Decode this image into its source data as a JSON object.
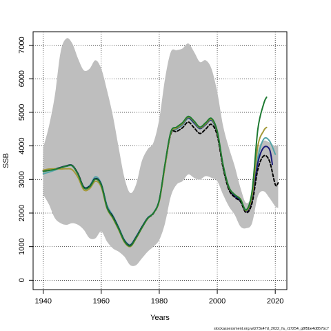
{
  "chart_data": {
    "type": "line",
    "title": "",
    "xlabel": "Years",
    "ylabel": "SSB",
    "footnote": "stockassessment.org,wt273s47d_2022_fa_r17254_g8f5be4d857bc7",
    "xlim": [
      1936.5,
      2024
    ],
    "ylim": [
      -280,
      7400
    ],
    "grid": true,
    "x_ticks": [
      1940,
      1960,
      1980,
      2000,
      2020
    ],
    "y_ticks": [
      0,
      1000,
      2000,
      3000,
      4000,
      5000,
      6000,
      7000
    ],
    "confidence_band": {
      "color": "#bebebe",
      "x": [
        1940,
        1942,
        1944,
        1946,
        1948,
        1950,
        1952,
        1954,
        1956,
        1958,
        1960,
        1962,
        1964,
        1966,
        1968,
        1970,
        1972,
        1974,
        1976,
        1978,
        1980,
        1982,
        1984,
        1986,
        1988,
        1990,
        1992,
        1994,
        1996,
        1998,
        2000,
        2002,
        2004,
        2006,
        2008,
        2010,
        2012,
        2014,
        2016,
        2018,
        2020,
        2021
      ],
      "upper": [
        3950,
        4600,
        5500,
        6800,
        7200,
        7050,
        6600,
        6250,
        6300,
        6550,
        6300,
        5650,
        4900,
        3950,
        3050,
        2600,
        2850,
        3550,
        3900,
        4100,
        4800,
        6000,
        6800,
        6850,
        6900,
        7050,
        6800,
        6500,
        6550,
        6300,
        5600,
        4600,
        3950,
        3400,
        2750,
        2300,
        2600,
        3850,
        4150,
        4100,
        4000,
        4050
      ],
      "lower": [
        2550,
        2250,
        1850,
        1700,
        1650,
        1700,
        1650,
        1500,
        1250,
        1250,
        1450,
        1150,
        950,
        850,
        700,
        450,
        450,
        650,
        850,
        1000,
        1200,
        1700,
        2500,
        2850,
        2950,
        3150,
        3050,
        3000,
        3100,
        3050,
        2950,
        2550,
        2200,
        1950,
        1600,
        1550,
        1700,
        2500,
        2650,
        2450,
        2200,
        2150
      ]
    },
    "series": [
      {
        "color": "#53a5a8",
        "x": [
          1940,
          1942,
          1944,
          1946,
          1948,
          1950,
          1952,
          1954,
          1956,
          1958,
          1960,
          1962,
          1964,
          1966,
          1968,
          1970,
          1972,
          1974,
          1976,
          1978,
          1980,
          1982,
          1984,
          1986,
          1988,
          1990,
          1992,
          1994,
          1996,
          1998,
          2000,
          2002,
          2004,
          2006,
          2008,
          2010,
          2012,
          2014,
          2016,
          2018,
          2020
        ],
        "values": [
          3170,
          3220,
          3280,
          3340,
          3390,
          3400,
          3150,
          2780,
          2820,
          3080,
          2880,
          2230,
          1930,
          1580,
          1200,
          1060,
          1300,
          1590,
          1860,
          2010,
          2400,
          3450,
          4380,
          4500,
          4620,
          4820,
          4670,
          4510,
          4630,
          4760,
          4380,
          3400,
          2750,
          2520,
          2390,
          2100,
          2470,
          3650,
          4200,
          4150,
          3750
        ]
      },
      {
        "color": "#1a1a78",
        "x": [
          1940,
          1942,
          1944,
          1946,
          1948,
          1950,
          1952,
          1954,
          1956,
          1958,
          1960,
          1962,
          1964,
          1966,
          1968,
          1970,
          1972,
          1974,
          1976,
          1978,
          1980,
          1982,
          1984,
          1986,
          1988,
          1990,
          1992,
          1994,
          1996,
          1998,
          2000,
          2002,
          2004,
          2006,
          2008,
          2010,
          2012,
          2014,
          2016,
          2018,
          2019
        ],
        "values": [
          3250,
          3280,
          3310,
          3360,
          3410,
          3420,
          3170,
          2770,
          2800,
          3030,
          2850,
          2180,
          1900,
          1550,
          1180,
          1040,
          1280,
          1580,
          1850,
          2000,
          2380,
          3450,
          4400,
          4520,
          4650,
          4840,
          4690,
          4520,
          4640,
          4770,
          4400,
          3400,
          2740,
          2500,
          2370,
          2050,
          2400,
          3500,
          3950,
          3900,
          3450
        ]
      },
      {
        "color": "#000000",
        "dashed": true,
        "x": [
          1940,
          1942,
          1944,
          1946,
          1948,
          1950,
          1952,
          1954,
          1956,
          1958,
          1960,
          1962,
          1964,
          1966,
          1968,
          1970,
          1972,
          1974,
          1976,
          1978,
          1980,
          1982,
          1984,
          1986,
          1988,
          1990,
          1992,
          1994,
          1996,
          1998,
          2000,
          2002,
          2004,
          2006,
          2008,
          2010,
          2012,
          2014,
          2016,
          2018,
          2020,
          2021
        ],
        "values": [
          3260,
          3290,
          3310,
          3350,
          3400,
          3410,
          3160,
          2760,
          2790,
          3020,
          2840,
          2170,
          1890,
          1540,
          1170,
          1030,
          1270,
          1570,
          1840,
          1990,
          2370,
          3420,
          4360,
          4430,
          4540,
          4710,
          4540,
          4370,
          4500,
          4640,
          4310,
          3350,
          2700,
          2470,
          2340,
          2010,
          2300,
          3300,
          3700,
          3550,
          2850,
          2900
        ]
      },
      {
        "color": "#a49a3a",
        "x": [
          1940,
          1942,
          1944,
          1946,
          1948,
          1950,
          1952,
          1954,
          1956,
          1958,
          1960,
          1962,
          1964,
          1966,
          1968,
          1970,
          1972,
          1974,
          1976,
          1978,
          1980,
          1982,
          1984,
          1986,
          1988,
          1990,
          1992,
          1994,
          1996,
          1998,
          2000,
          2002,
          2004,
          2006,
          2008,
          2010,
          2012,
          2014,
          2016,
          2017
        ],
        "values": [
          3280,
          3310,
          3320,
          3310,
          3320,
          3290,
          3060,
          2690,
          2730,
          2950,
          2770,
          2130,
          1840,
          1500,
          1130,
          1000,
          1240,
          1550,
          1830,
          2000,
          2350,
          3400,
          4390,
          4530,
          4660,
          4860,
          4720,
          4540,
          4660,
          4790,
          4420,
          3430,
          2770,
          2550,
          2420,
          2070,
          2520,
          4000,
          4450,
          4550
        ]
      },
      {
        "color": "#1e7a32",
        "x": [
          1940,
          1942,
          1944,
          1946,
          1948,
          1950,
          1952,
          1954,
          1956,
          1958,
          1960,
          1962,
          1964,
          1966,
          1968,
          1970,
          1972,
          1974,
          1976,
          1978,
          1980,
          1982,
          1984,
          1986,
          1988,
          1990,
          1992,
          1994,
          1996,
          1998,
          2000,
          2002,
          2004,
          2006,
          2008,
          2010,
          2012,
          2014,
          2016,
          2017
        ],
        "values": [
          3240,
          3270,
          3300,
          3350,
          3400,
          3410,
          3150,
          2750,
          2780,
          3010,
          2830,
          2160,
          1870,
          1530,
          1160,
          1020,
          1260,
          1560,
          1840,
          2000,
          2380,
          3470,
          4420,
          4560,
          4690,
          4880,
          4740,
          4560,
          4690,
          4820,
          4440,
          3440,
          2780,
          2550,
          2410,
          2090,
          2650,
          4500,
          5250,
          5450
        ]
      }
    ]
  }
}
